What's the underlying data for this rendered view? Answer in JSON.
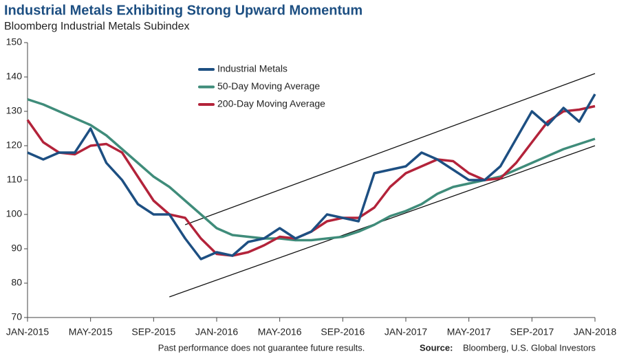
{
  "chart_data": {
    "type": "line",
    "title": "Industrial Metals Exhibiting Strong Upward Momentum",
    "subtitle": "Bloomberg Industrial Metals Subindex",
    "note": "Past performance does not guarantee future results.",
    "source_label": "Source:",
    "source": "Bloomberg, U.S. Global Investors",
    "x": [
      "2015-01",
      "2015-02",
      "2015-03",
      "2015-04",
      "2015-05",
      "2015-06",
      "2015-07",
      "2015-08",
      "2015-09",
      "2015-10",
      "2015-11",
      "2015-12",
      "2016-01",
      "2016-02",
      "2016-03",
      "2016-04",
      "2016-05",
      "2016-06",
      "2016-07",
      "2016-08",
      "2016-09",
      "2016-10",
      "2016-11",
      "2016-12",
      "2017-01",
      "2017-02",
      "2017-03",
      "2017-04",
      "2017-05",
      "2017-06",
      "2017-07",
      "2017-08",
      "2017-09",
      "2017-10",
      "2017-11",
      "2017-12",
      "2018-01"
    ],
    "series": [
      {
        "name": "Industrial Metals",
        "color": "#1d4f82",
        "values": [
          118,
          116,
          118,
          118,
          125,
          115,
          110,
          103,
          100,
          100,
          93,
          87,
          89,
          88,
          92,
          93,
          96,
          93,
          95,
          100,
          99,
          98,
          112,
          113,
          114,
          118,
          116,
          113,
          110,
          110,
          114,
          122,
          130,
          126,
          131,
          127,
          135
        ]
      },
      {
        "name": "50-Day Moving Average",
        "color": "#3f8c7a",
        "values": [
          133.5,
          132,
          130,
          128,
          126,
          123,
          119,
          115,
          111,
          108,
          104,
          100,
          96,
          94,
          93.5,
          93,
          93,
          92.5,
          92.5,
          93,
          93.5,
          95,
          97,
          99.5,
          101,
          103,
          106,
          108,
          109,
          110,
          111,
          113,
          115,
          117,
          119,
          120.5,
          122
        ]
      },
      {
        "name": "200-Day Moving Average",
        "color": "#b3233a",
        "values": [
          127.5,
          121,
          118,
          117.5,
          120,
          120.5,
          118,
          111,
          104,
          100,
          99,
          93,
          88.5,
          88,
          89,
          91,
          93.5,
          93,
          95,
          98,
          99,
          99,
          102,
          108,
          112,
          114,
          116,
          115.5,
          112,
          110,
          110.5,
          115,
          121,
          127,
          130,
          130.5,
          131.5
        ]
      }
    ],
    "channel_lines": [
      {
        "x": [
          "2015-11",
          "2018-01"
        ],
        "values": [
          97,
          141
        ]
      },
      {
        "x": [
          "2015-10",
          "2018-01"
        ],
        "values": [
          76,
          120
        ]
      }
    ],
    "ylim": [
      70,
      150
    ],
    "yticks": [
      70,
      80,
      90,
      100,
      110,
      120,
      130,
      140,
      150
    ],
    "xlim": [
      "2015-01",
      "2018-01"
    ],
    "xticks": [
      {
        "value": "2015-01",
        "label": "JAN-2015"
      },
      {
        "value": "2015-05",
        "label": "MAY-2015"
      },
      {
        "value": "2015-09",
        "label": "SEP-2015"
      },
      {
        "value": "2016-01",
        "label": "JAN-2016"
      },
      {
        "value": "2016-05",
        "label": "MAY-2016"
      },
      {
        "value": "2016-09",
        "label": "SEP-2016"
      },
      {
        "value": "2017-01",
        "label": "JAN-2017"
      },
      {
        "value": "2017-05",
        "label": "MAY-2017"
      },
      {
        "value": "2017-09",
        "label": "SEP-2017"
      },
      {
        "value": "2018-01",
        "label": "JAN-2018"
      }
    ],
    "legend": "upper center",
    "grid": false
  }
}
